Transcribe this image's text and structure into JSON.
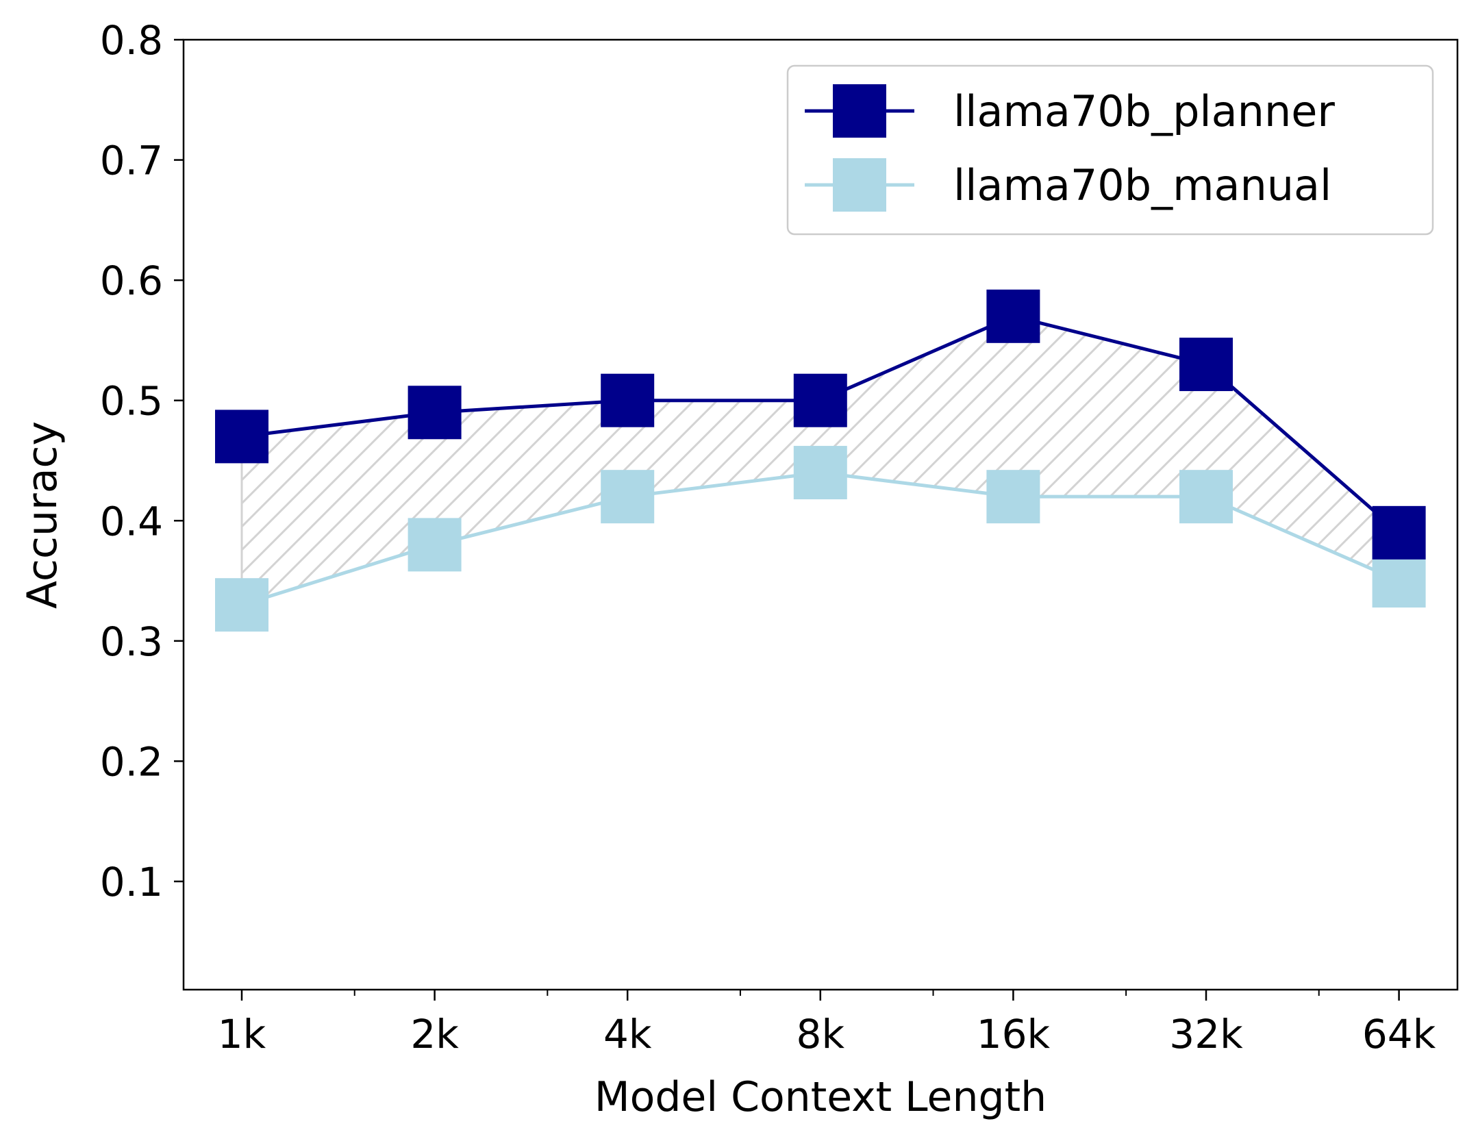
{
  "chart_data": {
    "type": "line",
    "title": "",
    "xlabel": "Model Context Length",
    "ylabel": "Accuracy",
    "categories": [
      "1k",
      "2k",
      "4k",
      "8k",
      "16k",
      "32k",
      "64k"
    ],
    "ylim": [
      0.01,
      0.8
    ],
    "yticks": [
      "0.1",
      "0.2",
      "0.3",
      "0.4",
      "0.5",
      "0.6",
      "0.7",
      "0.8"
    ],
    "ytick_values": [
      0.1,
      0.2,
      0.3,
      0.4,
      0.5,
      0.6,
      0.7,
      0.8
    ],
    "grid": false,
    "legend_position": "top-right",
    "fill_between": {
      "pattern": "diagonal-hatch",
      "color": "#d3d3d3"
    },
    "series": [
      {
        "name": "llama70b_planner",
        "color": "#00008b",
        "marker": "square",
        "values": [
          0.47,
          0.49,
          0.5,
          0.5,
          0.57,
          0.53,
          0.39
        ]
      },
      {
        "name": "llama70b_manual",
        "color": "#add8e6",
        "marker": "square",
        "values": [
          0.33,
          0.38,
          0.42,
          0.44,
          0.42,
          0.42,
          0.35
        ]
      }
    ]
  }
}
